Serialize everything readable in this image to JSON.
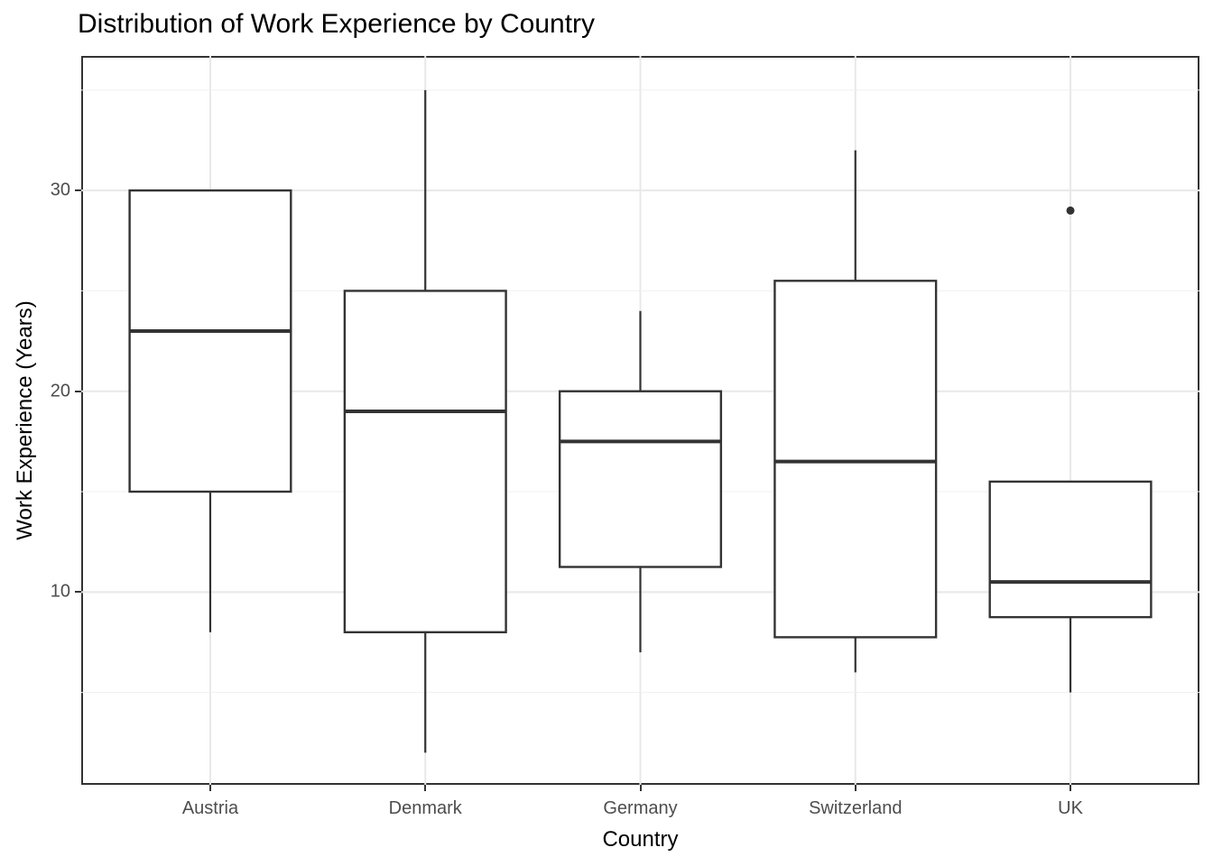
{
  "title": "Distribution of Work Experience by Country",
  "chart_data": {
    "type": "boxplot",
    "title": "Distribution of Work Experience by Country",
    "xlabel": "Country",
    "ylabel": "Work Experience (Years)",
    "categories": [
      "Austria",
      "Denmark",
      "Germany",
      "Switzerland",
      "UK"
    ],
    "series": [
      {
        "name": "Austria",
        "whisker_low": 8,
        "q1": 15,
        "median": 23,
        "q3": 30,
        "whisker_high": 30,
        "outliers": []
      },
      {
        "name": "Denmark",
        "whisker_low": 2,
        "q1": 8,
        "median": 19,
        "q3": 25,
        "whisker_high": 35,
        "outliers": []
      },
      {
        "name": "Germany",
        "whisker_low": 7,
        "q1": 11.25,
        "median": 17.5,
        "q3": 20,
        "whisker_high": 24,
        "outliers": []
      },
      {
        "name": "Switzerland",
        "whisker_low": 6,
        "q1": 7.75,
        "median": 16.5,
        "q3": 25.5,
        "whisker_high": 32,
        "outliers": []
      },
      {
        "name": "UK",
        "whisker_low": 5,
        "q1": 8.75,
        "median": 10.5,
        "q3": 15.5,
        "whisker_high": 15.5,
        "outliers": [
          29
        ]
      }
    ],
    "y_major_ticks": [
      10,
      20,
      30
    ],
    "y_minor_gridlines": [
      5,
      15,
      25,
      35
    ],
    "ylim": [
      0.4,
      36.7
    ],
    "grid": "on",
    "legend": "none",
    "box_width_fraction": 0.75
  },
  "colors": {
    "box_stroke": "#333333",
    "outlier_fill": "#333333",
    "panel_border": "#333333",
    "tick_mark": "#333333",
    "grid_major": "#e8e8e8",
    "grid_minor": "#f0f0f0",
    "tick_label": "#4d4d4d",
    "title_color": "#000000",
    "background": "#ffffff"
  }
}
